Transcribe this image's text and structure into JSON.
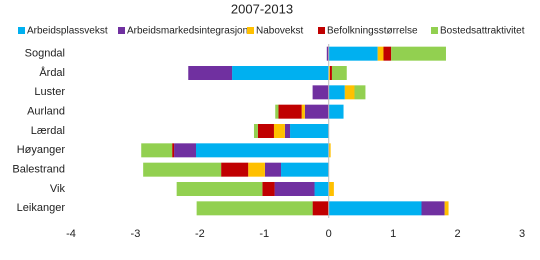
{
  "chart_data": {
    "type": "bar",
    "orientation": "horizontal",
    "stacked": true,
    "title": "2007-2013",
    "categories": [
      "Sogndal",
      "Årdal",
      "Luster",
      "Aurland",
      "Lærdal",
      "Høyanger",
      "Balestrand",
      "Vik",
      "Leikanger"
    ],
    "series": [
      {
        "name": "Arbeidsplassvekst",
        "color": "#00b0f0",
        "values": [
          0.76,
          -1.5,
          0.25,
          0.23,
          -0.6,
          -2.06,
          -0.74,
          -0.22,
          1.44
        ]
      },
      {
        "name": "Arbeidsmarkedsintegrasjon",
        "color": "#7030a0",
        "values": [
          -0.03,
          -0.68,
          -0.25,
          -0.37,
          -0.08,
          -0.34,
          -0.25,
          -0.62,
          0.36
        ]
      },
      {
        "name": "Nabovekst",
        "color": "#ffc000",
        "values": [
          0.09,
          0.02,
          0.15,
          -0.05,
          -0.17,
          0.03,
          -0.26,
          0.08,
          0.06
        ]
      },
      {
        "name": "Befolkningsstørrelse",
        "color": "#c00000",
        "values": [
          0.12,
          0.03,
          0,
          -0.36,
          -0.25,
          -0.03,
          -0.42,
          -0.19,
          -0.25
        ]
      },
      {
        "name": "Bostedsattraktivitet",
        "color": "#92d050",
        "values": [
          0.85,
          0.23,
          0.17,
          -0.05,
          -0.06,
          -0.48,
          -1.21,
          -1.33,
          -1.8
        ]
      }
    ],
    "xlim": [
      -4,
      3
    ],
    "xticks": [
      -4,
      -3,
      -2,
      -1,
      0,
      1,
      2,
      3
    ],
    "grid": false,
    "legend": "top"
  }
}
